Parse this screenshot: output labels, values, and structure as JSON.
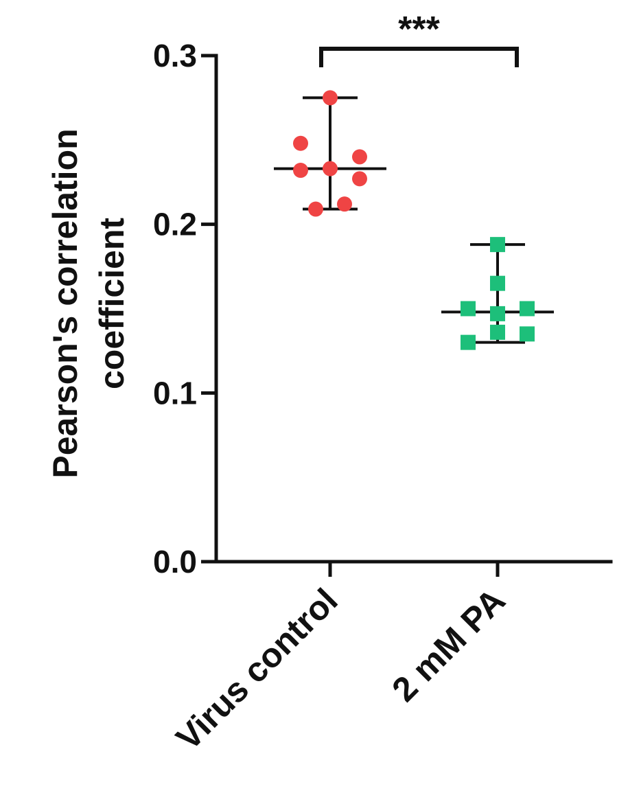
{
  "chart_data": {
    "type": "scatter",
    "title": "",
    "xlabel": "",
    "ylabel_lines": [
      "Pearson's correlation",
      "coefficient"
    ],
    "ylim": [
      0,
      0.3
    ],
    "yticks": [
      {
        "value": 0.0,
        "label": "0.0"
      },
      {
        "value": 0.1,
        "label": "0.1"
      },
      {
        "value": 0.2,
        "label": "0.2"
      },
      {
        "value": 0.3,
        "label": "0.3"
      }
    ],
    "categories": [
      "Virus control",
      "2 mM PA"
    ],
    "series": [
      {
        "category": "Virus control",
        "marker": "circle",
        "color": "#ef4444",
        "points": [
          0.275,
          0.248,
          0.24,
          0.233,
          0.232,
          0.227,
          0.212,
          0.209
        ],
        "summary": {
          "center": 0.233,
          "low": 0.209,
          "high": 0.275
        }
      },
      {
        "category": "2 mM PA",
        "marker": "square",
        "color": "#1dbf7a",
        "points": [
          0.188,
          0.165,
          0.15,
          0.15,
          0.147,
          0.136,
          0.135,
          0.13
        ],
        "summary": {
          "center": 0.148,
          "low": 0.13,
          "high": 0.188
        }
      }
    ],
    "significance": {
      "label": "***",
      "between": [
        "Virus control",
        "2 mM PA"
      ]
    }
  }
}
